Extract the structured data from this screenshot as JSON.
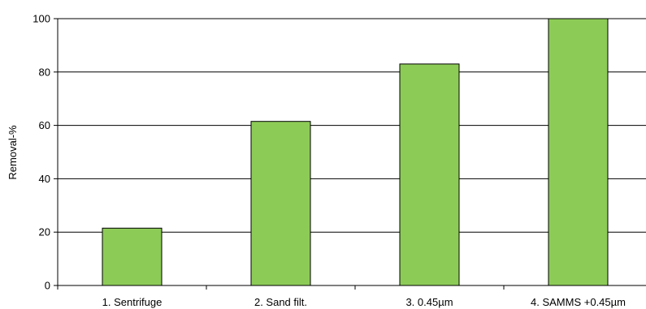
{
  "chart_data": {
    "type": "bar",
    "title": "",
    "xlabel": "",
    "ylabel": "Removal-%",
    "categories": [
      "1. Sentrifuge",
      "2. Sand filt.",
      "3. 0.45µm",
      "4. SAMMS +0.45µm"
    ],
    "values": [
      21.5,
      61.5,
      83,
      100
    ],
    "ylim": [
      0,
      100
    ],
    "yticks": [
      0,
      20,
      40,
      60,
      80,
      100
    ],
    "grid": true,
    "legend": "none",
    "colors": {
      "bar_fill": "#8DCB57",
      "bar_stroke": "#000000",
      "grid": "#000000",
      "axis": "#000000"
    }
  }
}
